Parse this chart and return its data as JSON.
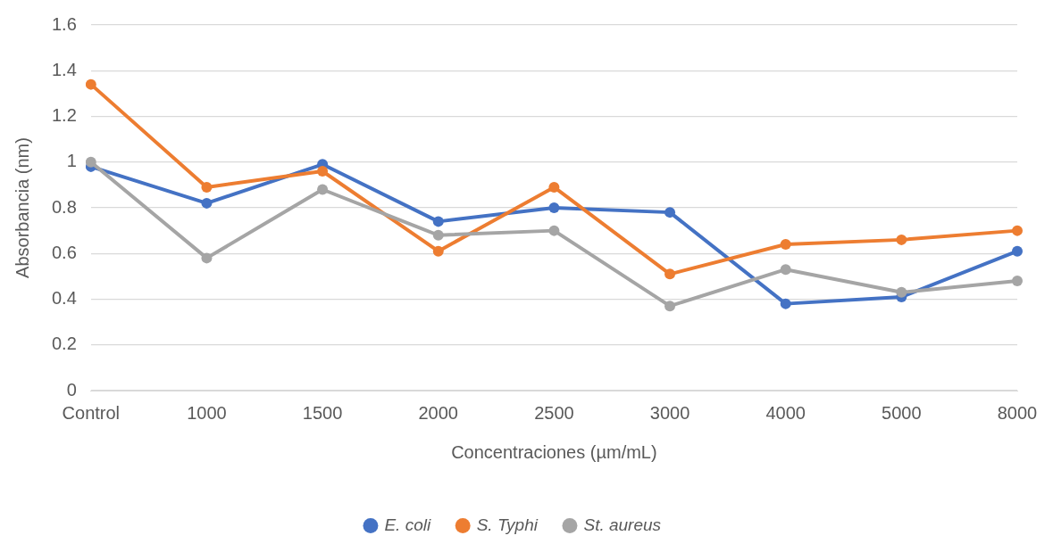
{
  "chart_data": {
    "type": "line",
    "xlabel": "Concentraciones (µm/mL)",
    "ylabel": "Absorbancia (nm)",
    "categories": [
      "Control",
      "1000",
      "1500",
      "2000",
      "2500",
      "3000",
      "4000",
      "5000",
      "8000"
    ],
    "series": [
      {
        "name": "E. coli",
        "color": "#4472c4",
        "values": [
          0.98,
          0.82,
          0.99,
          0.74,
          0.8,
          0.78,
          0.38,
          0.41,
          0.61
        ]
      },
      {
        "name": "S. Typhi",
        "color": "#ed7d31",
        "values": [
          1.34,
          0.89,
          0.96,
          0.61,
          0.89,
          0.51,
          0.64,
          0.66,
          0.7
        ]
      },
      {
        "name": "St. aureus",
        "color": "#a5a5a5",
        "values": [
          1.0,
          0.58,
          0.88,
          0.68,
          0.7,
          0.37,
          0.53,
          0.43,
          0.48
        ]
      }
    ],
    "ylim": [
      0,
      1.6
    ],
    "yticks": [
      0,
      0.2,
      0.4,
      0.6,
      0.8,
      1,
      1.2,
      1.4,
      1.6
    ],
    "grid": "y",
    "legend": "bottom",
    "marker": "circle",
    "line_style": "solid"
  }
}
